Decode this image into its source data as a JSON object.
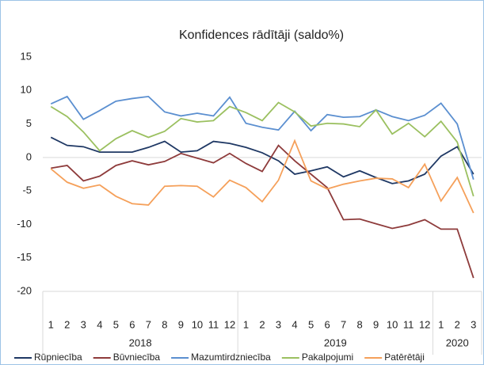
{
  "chart_data": {
    "type": "line",
    "title": "Konfidences rādītāji (saldo%)",
    "category_groups": [
      {
        "label": "2018",
        "categories": [
          1,
          2,
          3,
          4,
          5,
          6,
          7,
          8,
          9,
          10,
          11,
          12
        ]
      },
      {
        "label": "2019",
        "categories": [
          1,
          2,
          3,
          4,
          5,
          6,
          7,
          8,
          9,
          10,
          11,
          12
        ]
      },
      {
        "label": "2020",
        "categories": [
          1,
          2,
          3
        ]
      }
    ],
    "series": [
      {
        "name": "Rūpniecība",
        "color": "#1f3864",
        "values": [
          3,
          1.8,
          1.6,
          0.8,
          0.8,
          0.8,
          1.5,
          2.4,
          0.8,
          1.0,
          2.4,
          2.1,
          1.5,
          0.7,
          -0.5,
          -2.5,
          -2.0,
          -1.4,
          -2.9,
          -2.0,
          -3.0,
          -3.9,
          -3.5,
          -2.5,
          0.2,
          1.6,
          -2.5
        ]
      },
      {
        "name": "Būvniecība",
        "color": "#8e3b3b",
        "values": [
          -1.6,
          -1.2,
          -3.5,
          -2.8,
          -1.2,
          -0.5,
          -1.1,
          -0.6,
          0.6,
          -0.1,
          -0.8,
          0.6,
          -0.9,
          -2.1,
          1.8,
          -0.5,
          -2.5,
          -4.5,
          -9.3,
          -9.2,
          -9.9,
          -10.6,
          -10.1,
          -9.3,
          -10.7,
          -10.7,
          -18.0
        ]
      },
      {
        "name": "Mazumtirdzniecība",
        "color": "#5b8fd0",
        "values": [
          8.0,
          9.1,
          5.7,
          7.0,
          8.4,
          8.8,
          9.1,
          6.8,
          6.2,
          6.6,
          6.2,
          9.0,
          5.1,
          4.5,
          4.1,
          6.9,
          4.0,
          6.4,
          6.0,
          6.1,
          7.1,
          6.1,
          5.5,
          6.3,
          8.1,
          5.0,
          -3.3
        ]
      },
      {
        "name": "Pakalpojumi",
        "color": "#9bc060",
        "values": [
          7.6,
          6.1,
          3.8,
          1.0,
          2.8,
          4.0,
          3.0,
          3.9,
          5.8,
          5.3,
          5.5,
          7.6,
          6.7,
          5.5,
          8.2,
          6.8,
          4.7,
          5.1,
          5.0,
          4.6,
          7.1,
          3.5,
          5.1,
          3.1,
          5.4,
          2.3,
          -5.8
        ]
      },
      {
        "name": "Patērētāji",
        "color": "#f5a05a",
        "values": [
          -1.7,
          -3.7,
          -4.6,
          -4.1,
          -5.8,
          -6.9,
          -7.1,
          -4.3,
          -4.2,
          -4.3,
          -5.9,
          -3.4,
          -4.5,
          -6.6,
          -3.4,
          2.5,
          -3.5,
          -4.7,
          -4.0,
          -3.5,
          -3.1,
          -3.2,
          -4.5,
          -1.0,
          -6.5,
          -3.0,
          -8.3
        ]
      }
    ],
    "ylim": [
      -20,
      15
    ],
    "yticks": [
      -20,
      -15,
      -10,
      -5,
      0,
      5,
      10,
      15
    ]
  }
}
